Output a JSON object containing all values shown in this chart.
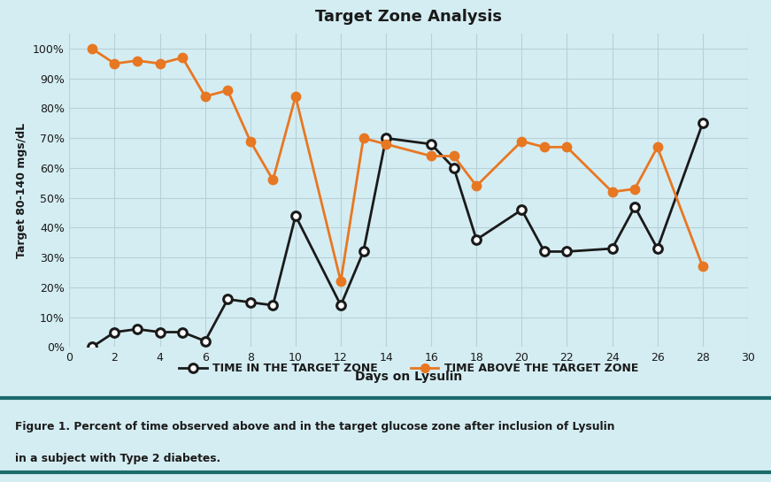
{
  "title": "Target Zone Analysis",
  "xlabel": "Days on Lysulin",
  "ylabel": "Target 80-140 mgs/dL",
  "bg_color": "#d4edf2",
  "grid_color": "#b8d0d8",
  "black_series": {
    "label": "TIME IN THE TARGET ZONE",
    "color": "#1a1a1a",
    "x": [
      1,
      2,
      3,
      4,
      5,
      6,
      7,
      8,
      9,
      10,
      12,
      13,
      14,
      16,
      17,
      18,
      20,
      21,
      22,
      24,
      25,
      26,
      28
    ],
    "y": [
      0,
      5,
      6,
      5,
      5,
      2,
      16,
      15,
      14,
      44,
      14,
      32,
      70,
      68,
      60,
      36,
      46,
      32,
      32,
      33,
      47,
      33,
      75
    ]
  },
  "orange_series": {
    "label": "TIME ABOVE THE TARGET ZONE",
    "color": "#e87722",
    "x": [
      1,
      2,
      3,
      4,
      5,
      6,
      7,
      8,
      9,
      10,
      12,
      13,
      14,
      16,
      17,
      18,
      20,
      21,
      22,
      24,
      25,
      26,
      28
    ],
    "y": [
      100,
      95,
      96,
      95,
      97,
      84,
      86,
      69,
      56,
      84,
      22,
      70,
      68,
      64,
      64,
      54,
      69,
      67,
      67,
      52,
      53,
      67,
      27
    ]
  },
  "xlim": [
    0,
    30
  ],
  "ylim": [
    0,
    105
  ],
  "xticks": [
    0,
    2,
    4,
    6,
    8,
    10,
    12,
    14,
    16,
    18,
    20,
    22,
    24,
    26,
    28,
    30
  ],
  "yticks": [
    0,
    10,
    20,
    30,
    40,
    50,
    60,
    70,
    80,
    90,
    100
  ],
  "ytick_labels": [
    "0%",
    "10%",
    "20%",
    "30%",
    "40%",
    "50%",
    "60%",
    "70%",
    "80%",
    "90%",
    "100%"
  ],
  "caption_line1": "Figure 1. Percent of time observed above and in the target glucose zone after inclusion of Lysulin",
  "caption_line2": "in a subject with Type 2 diabetes.",
  "caption_color": "#1a1a1a",
  "teal_line_color": "#1a6b6b",
  "outer_bg": "#d4edf2"
}
